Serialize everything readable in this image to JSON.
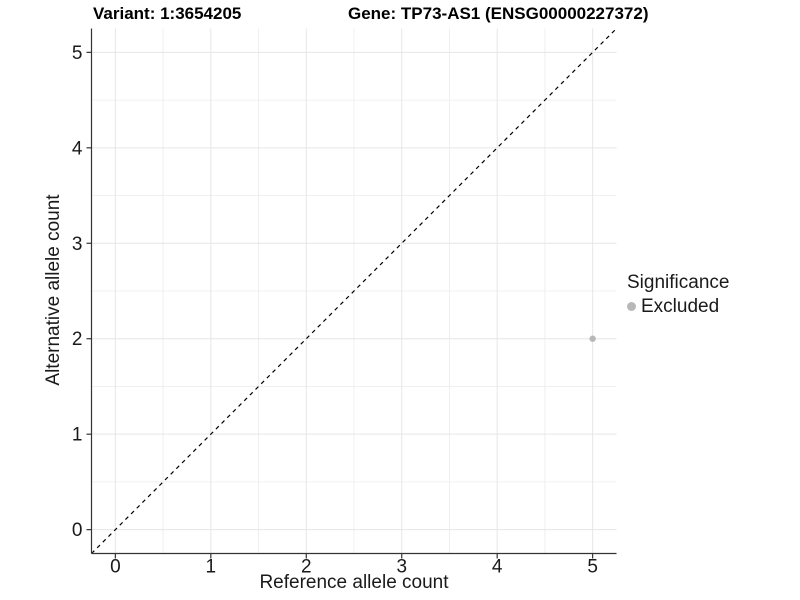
{
  "chart_data": {
    "type": "scatter",
    "title_left": "Variant: 1:3654205",
    "title_right": "Gene: TP73-AS1 (ENSG00000227372)",
    "xlabel": "Reference allele count",
    "ylabel": "Alternative allele count",
    "xlim": [
      -0.25,
      5.25
    ],
    "ylim": [
      -0.25,
      5.25
    ],
    "x_ticks": [
      0,
      1,
      2,
      3,
      4,
      5
    ],
    "y_ticks": [
      0,
      1,
      2,
      3,
      4,
      5
    ],
    "grid": {
      "major": true,
      "minor": true
    },
    "identity_line": {
      "style": "dashed",
      "from": [
        -0.25,
        -0.25
      ],
      "to": [
        5.25,
        5.25
      ],
      "color": "#000000"
    },
    "points": [
      {
        "x": 5,
        "y": 2,
        "series": "Excluded"
      }
    ],
    "legend": {
      "title": "Significance",
      "position": "right",
      "entries": [
        {
          "label": "Excluded",
          "color": "#b8b8b8"
        }
      ]
    },
    "colors": {
      "point_excluded": "#bebebe",
      "axis_line": "#333333",
      "tick_label": "#1a1a1a",
      "grid_major": "#e6e6e6",
      "grid_minor": "#f0f0f0",
      "background": "#ffffff"
    }
  }
}
